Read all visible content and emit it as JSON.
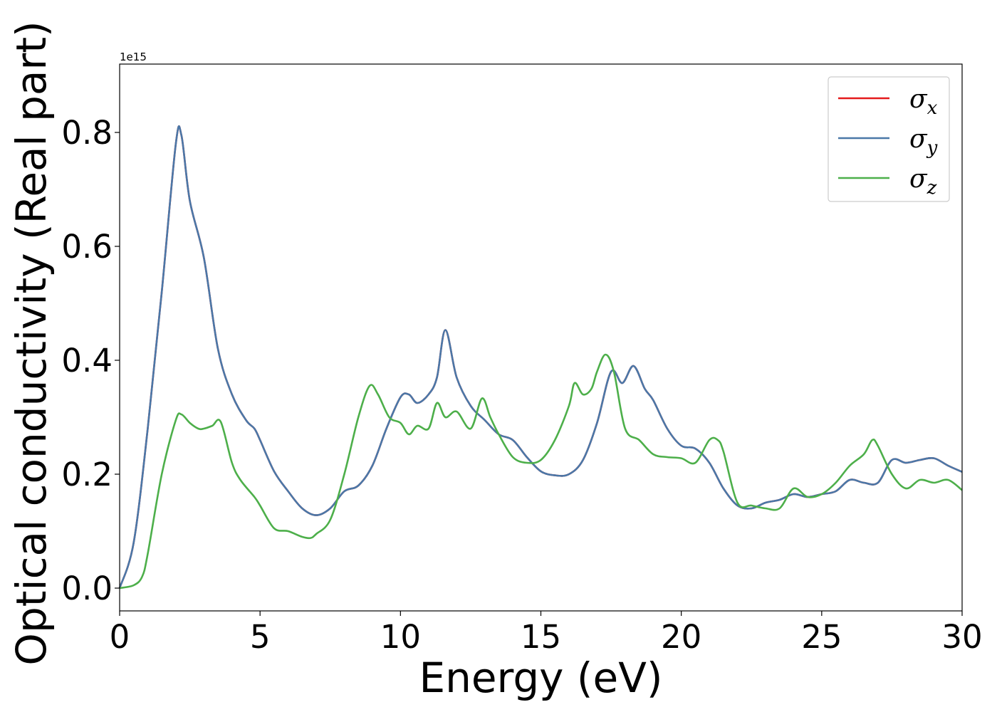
{
  "chart_data": {
    "type": "line",
    "title": "",
    "xlabel": "Energy (eV)",
    "ylabel": "Optical conductivity (Real part)",
    "y_offset_label": "1e15",
    "xlim": [
      0,
      30
    ],
    "ylim": [
      -0.04,
      0.92
    ],
    "xticks": [
      0,
      5,
      10,
      15,
      20,
      25,
      30
    ],
    "xtick_labels": [
      "0",
      "5",
      "10",
      "15",
      "20",
      "25",
      "30"
    ],
    "yticks": [
      0.0,
      0.2,
      0.4,
      0.6,
      0.8
    ],
    "ytick_labels": [
      "0.0",
      "0.2",
      "0.4",
      "0.6",
      "0.8"
    ],
    "grid": false,
    "legend_position": "top-right",
    "series": [
      {
        "name": "σx",
        "name_base": "σ",
        "name_sub": "x",
        "color": "#e41a1c",
        "x": [
          0,
          0.5,
          1.0,
          1.5,
          2.0,
          2.2,
          2.5,
          3.0,
          3.5,
          4.0,
          4.5,
          4.8,
          5.0,
          5.5,
          6.0,
          6.5,
          7.0,
          7.5,
          8.0,
          8.5,
          9.0,
          9.5,
          10.0,
          10.3,
          10.6,
          11.0,
          11.3,
          11.6,
          12.0,
          12.5,
          13.0,
          13.5,
          14.0,
          14.5,
          15.0,
          15.5,
          16.0,
          16.5,
          17.0,
          17.5,
          17.9,
          18.3,
          18.7,
          19.0,
          19.5,
          20.0,
          20.5,
          21.0,
          21.5,
          22.0,
          22.5,
          23.0,
          23.5,
          24.0,
          24.5,
          25.0,
          25.5,
          26.0,
          26.5,
          27.0,
          27.5,
          28.0,
          28.5,
          29.0,
          29.5,
          30.0
        ],
        "y": [
          0.0,
          0.08,
          0.28,
          0.52,
          0.78,
          0.795,
          0.68,
          0.58,
          0.42,
          0.34,
          0.295,
          0.28,
          0.26,
          0.205,
          0.17,
          0.14,
          0.128,
          0.14,
          0.17,
          0.18,
          0.215,
          0.28,
          0.335,
          0.34,
          0.325,
          0.34,
          0.37,
          0.453,
          0.37,
          0.32,
          0.295,
          0.27,
          0.26,
          0.23,
          0.205,
          0.198,
          0.2,
          0.225,
          0.29,
          0.38,
          0.36,
          0.39,
          0.35,
          0.33,
          0.28,
          0.25,
          0.245,
          0.22,
          0.175,
          0.145,
          0.14,
          0.15,
          0.155,
          0.165,
          0.16,
          0.165,
          0.17,
          0.19,
          0.185,
          0.185,
          0.225,
          0.22,
          0.225,
          0.228,
          0.215,
          0.204
        ]
      },
      {
        "name": "σy",
        "name_base": "σ",
        "name_sub": "y",
        "color": "#4a78a8",
        "x": [
          0,
          0.5,
          1.0,
          1.5,
          2.0,
          2.2,
          2.5,
          3.0,
          3.5,
          4.0,
          4.5,
          4.8,
          5.0,
          5.5,
          6.0,
          6.5,
          7.0,
          7.5,
          8.0,
          8.5,
          9.0,
          9.5,
          10.0,
          10.3,
          10.6,
          11.0,
          11.3,
          11.6,
          12.0,
          12.5,
          13.0,
          13.5,
          14.0,
          14.5,
          15.0,
          15.5,
          16.0,
          16.5,
          17.0,
          17.5,
          17.9,
          18.3,
          18.7,
          19.0,
          19.5,
          20.0,
          20.5,
          21.0,
          21.5,
          22.0,
          22.5,
          23.0,
          23.5,
          24.0,
          24.5,
          25.0,
          25.5,
          26.0,
          26.5,
          27.0,
          27.5,
          28.0,
          28.5,
          29.0,
          29.5,
          30.0
        ],
        "y": [
          0.0,
          0.08,
          0.28,
          0.52,
          0.78,
          0.795,
          0.68,
          0.58,
          0.42,
          0.34,
          0.295,
          0.28,
          0.26,
          0.205,
          0.17,
          0.14,
          0.128,
          0.14,
          0.17,
          0.18,
          0.215,
          0.28,
          0.335,
          0.34,
          0.325,
          0.34,
          0.37,
          0.453,
          0.37,
          0.32,
          0.295,
          0.27,
          0.26,
          0.23,
          0.205,
          0.198,
          0.2,
          0.225,
          0.29,
          0.38,
          0.36,
          0.39,
          0.35,
          0.33,
          0.28,
          0.25,
          0.245,
          0.22,
          0.175,
          0.145,
          0.14,
          0.15,
          0.155,
          0.165,
          0.16,
          0.165,
          0.17,
          0.19,
          0.185,
          0.185,
          0.225,
          0.22,
          0.225,
          0.228,
          0.215,
          0.204
        ]
      },
      {
        "name": "σz",
        "name_base": "σ",
        "name_sub": "z",
        "color": "#4daf4a",
        "x": [
          0,
          0.5,
          0.8,
          1.0,
          1.5,
          2.0,
          2.2,
          2.5,
          2.8,
          3.0,
          3.3,
          3.6,
          4.0,
          4.3,
          4.8,
          5.0,
          5.5,
          6.0,
          6.5,
          6.8,
          7.0,
          7.5,
          8.0,
          8.5,
          8.9,
          9.2,
          9.6,
          10.0,
          10.3,
          10.6,
          11.0,
          11.3,
          11.6,
          12.0,
          12.5,
          12.9,
          13.2,
          13.5,
          14.0,
          14.5,
          15.0,
          15.5,
          16.0,
          16.2,
          16.5,
          16.8,
          17.0,
          17.3,
          17.6,
          18.0,
          18.5,
          19.0,
          19.5,
          20.0,
          20.5,
          21.0,
          21.3,
          21.5,
          22.0,
          22.5,
          23.0,
          23.5,
          24.0,
          24.5,
          25.0,
          25.5,
          26.0,
          26.5,
          26.8,
          27.0,
          27.5,
          28.0,
          28.5,
          29.0,
          29.5,
          30.0
        ],
        "y": [
          0.0,
          0.005,
          0.02,
          0.06,
          0.2,
          0.295,
          0.305,
          0.29,
          0.28,
          0.28,
          0.285,
          0.292,
          0.22,
          0.19,
          0.16,
          0.145,
          0.105,
          0.1,
          0.09,
          0.088,
          0.095,
          0.12,
          0.2,
          0.3,
          0.355,
          0.34,
          0.3,
          0.29,
          0.27,
          0.285,
          0.28,
          0.325,
          0.3,
          0.31,
          0.28,
          0.333,
          0.3,
          0.27,
          0.23,
          0.22,
          0.225,
          0.26,
          0.32,
          0.36,
          0.34,
          0.35,
          0.38,
          0.41,
          0.38,
          0.28,
          0.26,
          0.235,
          0.23,
          0.228,
          0.22,
          0.26,
          0.26,
          0.24,
          0.15,
          0.145,
          0.14,
          0.14,
          0.175,
          0.16,
          0.165,
          0.185,
          0.215,
          0.235,
          0.26,
          0.25,
          0.2,
          0.175,
          0.19,
          0.185,
          0.19,
          0.172
        ]
      }
    ]
  }
}
